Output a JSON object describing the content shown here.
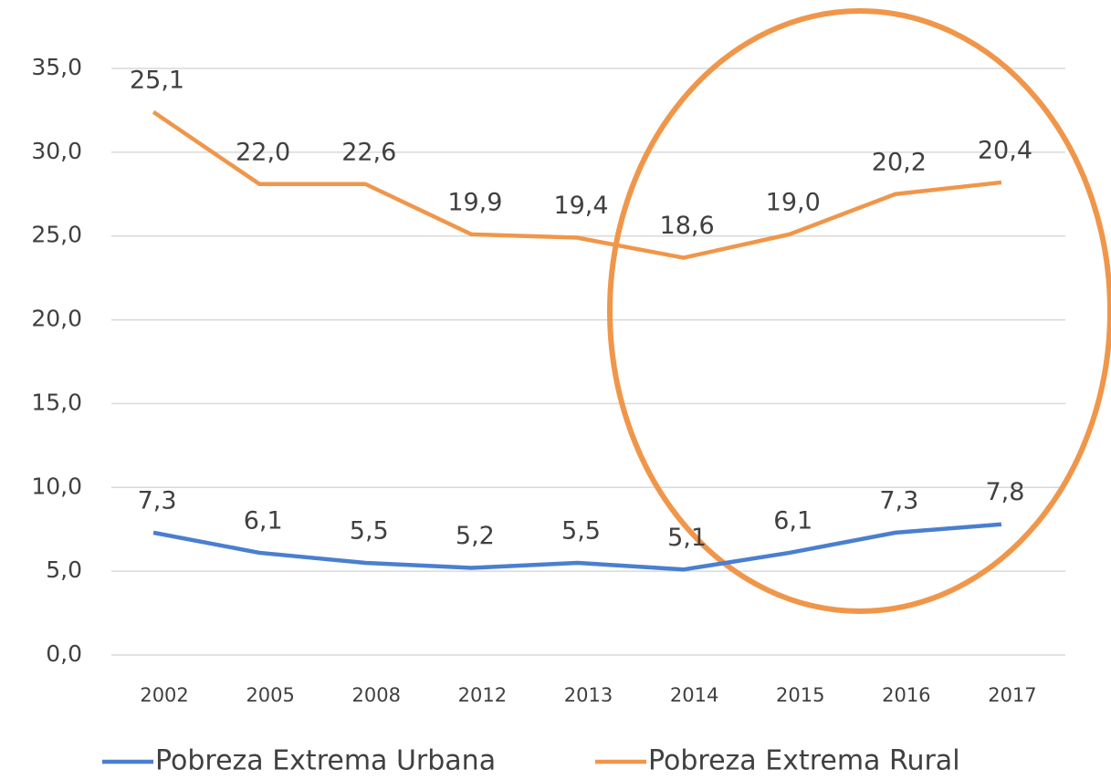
{
  "chart_data": {
    "type": "line",
    "stacked": true,
    "categories": [
      "2002",
      "2005",
      "2008",
      "2012",
      "2013",
      "2014",
      "2015",
      "2016",
      "2017"
    ],
    "series": [
      {
        "name": "Pobreza Extrema Urbana",
        "color": "#4a7fcf",
        "values": [
          7.3,
          6.1,
          5.5,
          5.2,
          5.5,
          5.1,
          6.1,
          7.3,
          7.8
        ],
        "value_labels": [
          "7,3",
          "6,1",
          "5,5",
          "5,2",
          "5,5",
          "5,1",
          "6,1",
          "7,3",
          "7,8"
        ]
      },
      {
        "name": "Pobreza Extrema Rural",
        "color": "#f0964a",
        "values": [
          25.1,
          22.0,
          22.6,
          19.9,
          19.4,
          18.6,
          19.0,
          20.2,
          20.4
        ],
        "value_labels": [
          "25,1",
          "22,0",
          "22,6",
          "19,9",
          "19,4",
          "18,6",
          "19,0",
          "20,2",
          "20,4"
        ]
      }
    ],
    "ylim": [
      0,
      35
    ],
    "yticks": [
      {
        "value": 0,
        "label": "0,0"
      },
      {
        "value": 5,
        "label": "5,0"
      },
      {
        "value": 10,
        "label": "10,0"
      },
      {
        "value": 15,
        "label": "15,0"
      },
      {
        "value": 20,
        "label": "20,0"
      },
      {
        "value": 25,
        "label": "25,0"
      },
      {
        "value": 30,
        "label": "30,0"
      },
      {
        "value": 35,
        "label": "35,0"
      }
    ],
    "grid": true,
    "legend": "bottom"
  }
}
